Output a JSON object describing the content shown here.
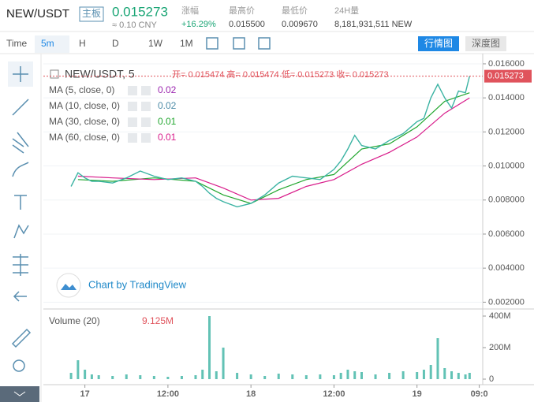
{
  "header": {
    "symbol": "NEW/USDT",
    "board": "主板",
    "price": "0.015273",
    "cny": "≈ 0.10 CNY",
    "stats": [
      {
        "label": "涨幅",
        "value": "+16.29%"
      },
      {
        "label": "最高价",
        "value": "0.015500"
      },
      {
        "label": "最低价",
        "value": "0.009670"
      },
      {
        "label": "24H量",
        "value": "8,181,931,511 NEW"
      }
    ]
  },
  "toolbar": {
    "time": "Time",
    "intervals": [
      "5m",
      "H",
      "D",
      "1W",
      "1M"
    ],
    "views": [
      "行情图",
      "深度图"
    ]
  },
  "watermark": "Chart by TradingView",
  "chart_data": [
    {
      "type": "line",
      "title": "NEW/USDT, 5",
      "subtitle": "开= 0.015474  高= 0.015474  低= 0.015273  收= 0.015273",
      "x": [
        -2,
        -1,
        0,
        1,
        2,
        4,
        6,
        8,
        10,
        12,
        14,
        16,
        17,
        18,
        19,
        20,
        22,
        24,
        26,
        28,
        30,
        32,
        34,
        36,
        37,
        38,
        39,
        40,
        42,
        44,
        46,
        48,
        49,
        50,
        51,
        52,
        53,
        54,
        55,
        55.6
      ],
      "series": [
        {
          "color": "#3bb3a3",
          "values": [
            0.0088,
            0.0096,
            0.0093,
            0.0091,
            0.0091,
            0.009,
            0.0093,
            0.0097,
            0.0094,
            0.0092,
            0.0093,
            0.0091,
            0.0088,
            0.0084,
            0.0081,
            0.0079,
            0.0076,
            0.0078,
            0.0083,
            0.009,
            0.0094,
            0.0093,
            0.0092,
            0.0098,
            0.0103,
            0.011,
            0.0118,
            0.0112,
            0.011,
            0.0115,
            0.0119,
            0.0126,
            0.0128,
            0.014,
            0.0148,
            0.014,
            0.0134,
            0.0144,
            0.0143,
            0.015273
          ]
        }
      ],
      "indicators": [
        {
          "name": "MA (5, close, 0)",
          "value": 0.02,
          "color": "#9c27b0"
        },
        {
          "name": "MA (10, close, 0)",
          "value": 0.02,
          "color": "#4e8ca8"
        },
        {
          "name": "MA (30, close, 0)",
          "value": 0.01,
          "color": "#21a62e",
          "x": [
            -1,
            4,
            10,
            16,
            20,
            24,
            28,
            32,
            36,
            40,
            44,
            48,
            52,
            55.6
          ],
          "values": [
            0.0092,
            0.0091,
            0.0093,
            0.0091,
            0.0083,
            0.0078,
            0.0086,
            0.0092,
            0.0095,
            0.011,
            0.0113,
            0.0123,
            0.0138,
            0.0143
          ]
        },
        {
          "name": "MA (60, close, 0)",
          "value": 0.01,
          "color": "#d81b8a",
          "x": [
            -1,
            4,
            10,
            16,
            20,
            24,
            28,
            32,
            36,
            40,
            44,
            48,
            52,
            55.6
          ],
          "values": [
            0.0094,
            0.0093,
            0.0092,
            0.0093,
            0.0087,
            0.008,
            0.0081,
            0.0088,
            0.0092,
            0.0101,
            0.0108,
            0.0117,
            0.0131,
            0.014
          ]
        }
      ],
      "xlim": [
        -6,
        57.5
      ],
      "ylim": [
        0.0016,
        0.0166
      ],
      "yticks": [
        {
          "value": 0.002,
          "label": "0.002000"
        },
        {
          "value": 0.004,
          "label": "0.004000"
        },
        {
          "value": 0.006,
          "label": "0.006000"
        },
        {
          "value": 0.008,
          "label": "0.008000"
        },
        {
          "value": 0.01,
          "label": "0.010000"
        },
        {
          "value": 0.012,
          "label": "0.012000"
        },
        {
          "value": 0.014,
          "label": "0.014000"
        },
        {
          "value": 0.016,
          "label": "0.016000"
        }
      ]
    },
    {
      "type": "bar",
      "title": "Volume (20)",
      "subtitle": "9.125M",
      "color": "#3bb3a3",
      "x": [
        -2,
        -1,
        0,
        1,
        2,
        4,
        6,
        8,
        10,
        12,
        14,
        16,
        17,
        18,
        19,
        20,
        22,
        24,
        26,
        28,
        30,
        32,
        34,
        36,
        37,
        38,
        39,
        40,
        42,
        44,
        46,
        48,
        49,
        50,
        51,
        52,
        53,
        54,
        55,
        55.6
      ],
      "values": [
        40,
        120,
        60,
        30,
        25,
        20,
        30,
        25,
        20,
        15,
        20,
        25,
        60,
        400,
        50,
        200,
        40,
        30,
        20,
        35,
        30,
        25,
        30,
        25,
        40,
        60,
        50,
        45,
        30,
        40,
        50,
        45,
        60,
        90,
        260,
        70,
        50,
        40,
        30,
        40
      ],
      "xlim": [
        -6,
        57.5
      ],
      "ylim": [
        0,
        435
      ],
      "yticks": [
        {
          "value": 0,
          "label": "0"
        },
        {
          "value": 200,
          "label": "200M"
        },
        {
          "value": 400,
          "label": "400M"
        }
      ],
      "xticks": [
        {
          "value": 0,
          "label": "17"
        },
        {
          "value": 12,
          "label": "12:00"
        },
        {
          "value": 24,
          "label": "18"
        },
        {
          "value": 36,
          "label": "12:00"
        },
        {
          "value": 48,
          "label": "19"
        },
        {
          "value": 57,
          "label": "09:0"
        }
      ]
    }
  ]
}
